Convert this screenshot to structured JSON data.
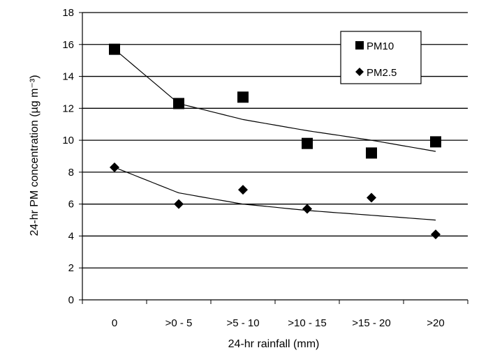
{
  "chart_data": {
    "type": "scatter",
    "categories": [
      "0",
      ">0 - 5",
      ">5 - 10",
      ">10 - 15",
      ">15 - 20",
      ">20"
    ],
    "series": [
      {
        "name": "PM10",
        "marker": "square",
        "color": "#000000",
        "values": [
          15.7,
          12.3,
          12.7,
          9.8,
          9.2,
          9.9
        ]
      },
      {
        "name": "PM2.5",
        "marker": "diamond",
        "color": "#000000",
        "values": [
          8.3,
          6.0,
          6.9,
          5.7,
          6.4,
          4.1
        ]
      }
    ],
    "trendlines": [
      {
        "series": "PM10",
        "type": "logarithmic",
        "values": [
          15.7,
          12.3,
          11.3,
          10.6,
          10.0,
          9.3
        ]
      },
      {
        "series": "PM2.5",
        "type": "logarithmic",
        "values": [
          8.3,
          6.7,
          6.0,
          5.6,
          5.3,
          5.0
        ]
      }
    ],
    "xlabel": "24-hr rainfall (mm)",
    "ylabel": "24-hr PM concentration (µg m⁻³)",
    "ylim": [
      0,
      18
    ],
    "yticks": [
      0,
      2,
      4,
      6,
      8,
      10,
      12,
      14,
      16,
      18
    ],
    "grid": true,
    "legend_position": "top-right"
  }
}
